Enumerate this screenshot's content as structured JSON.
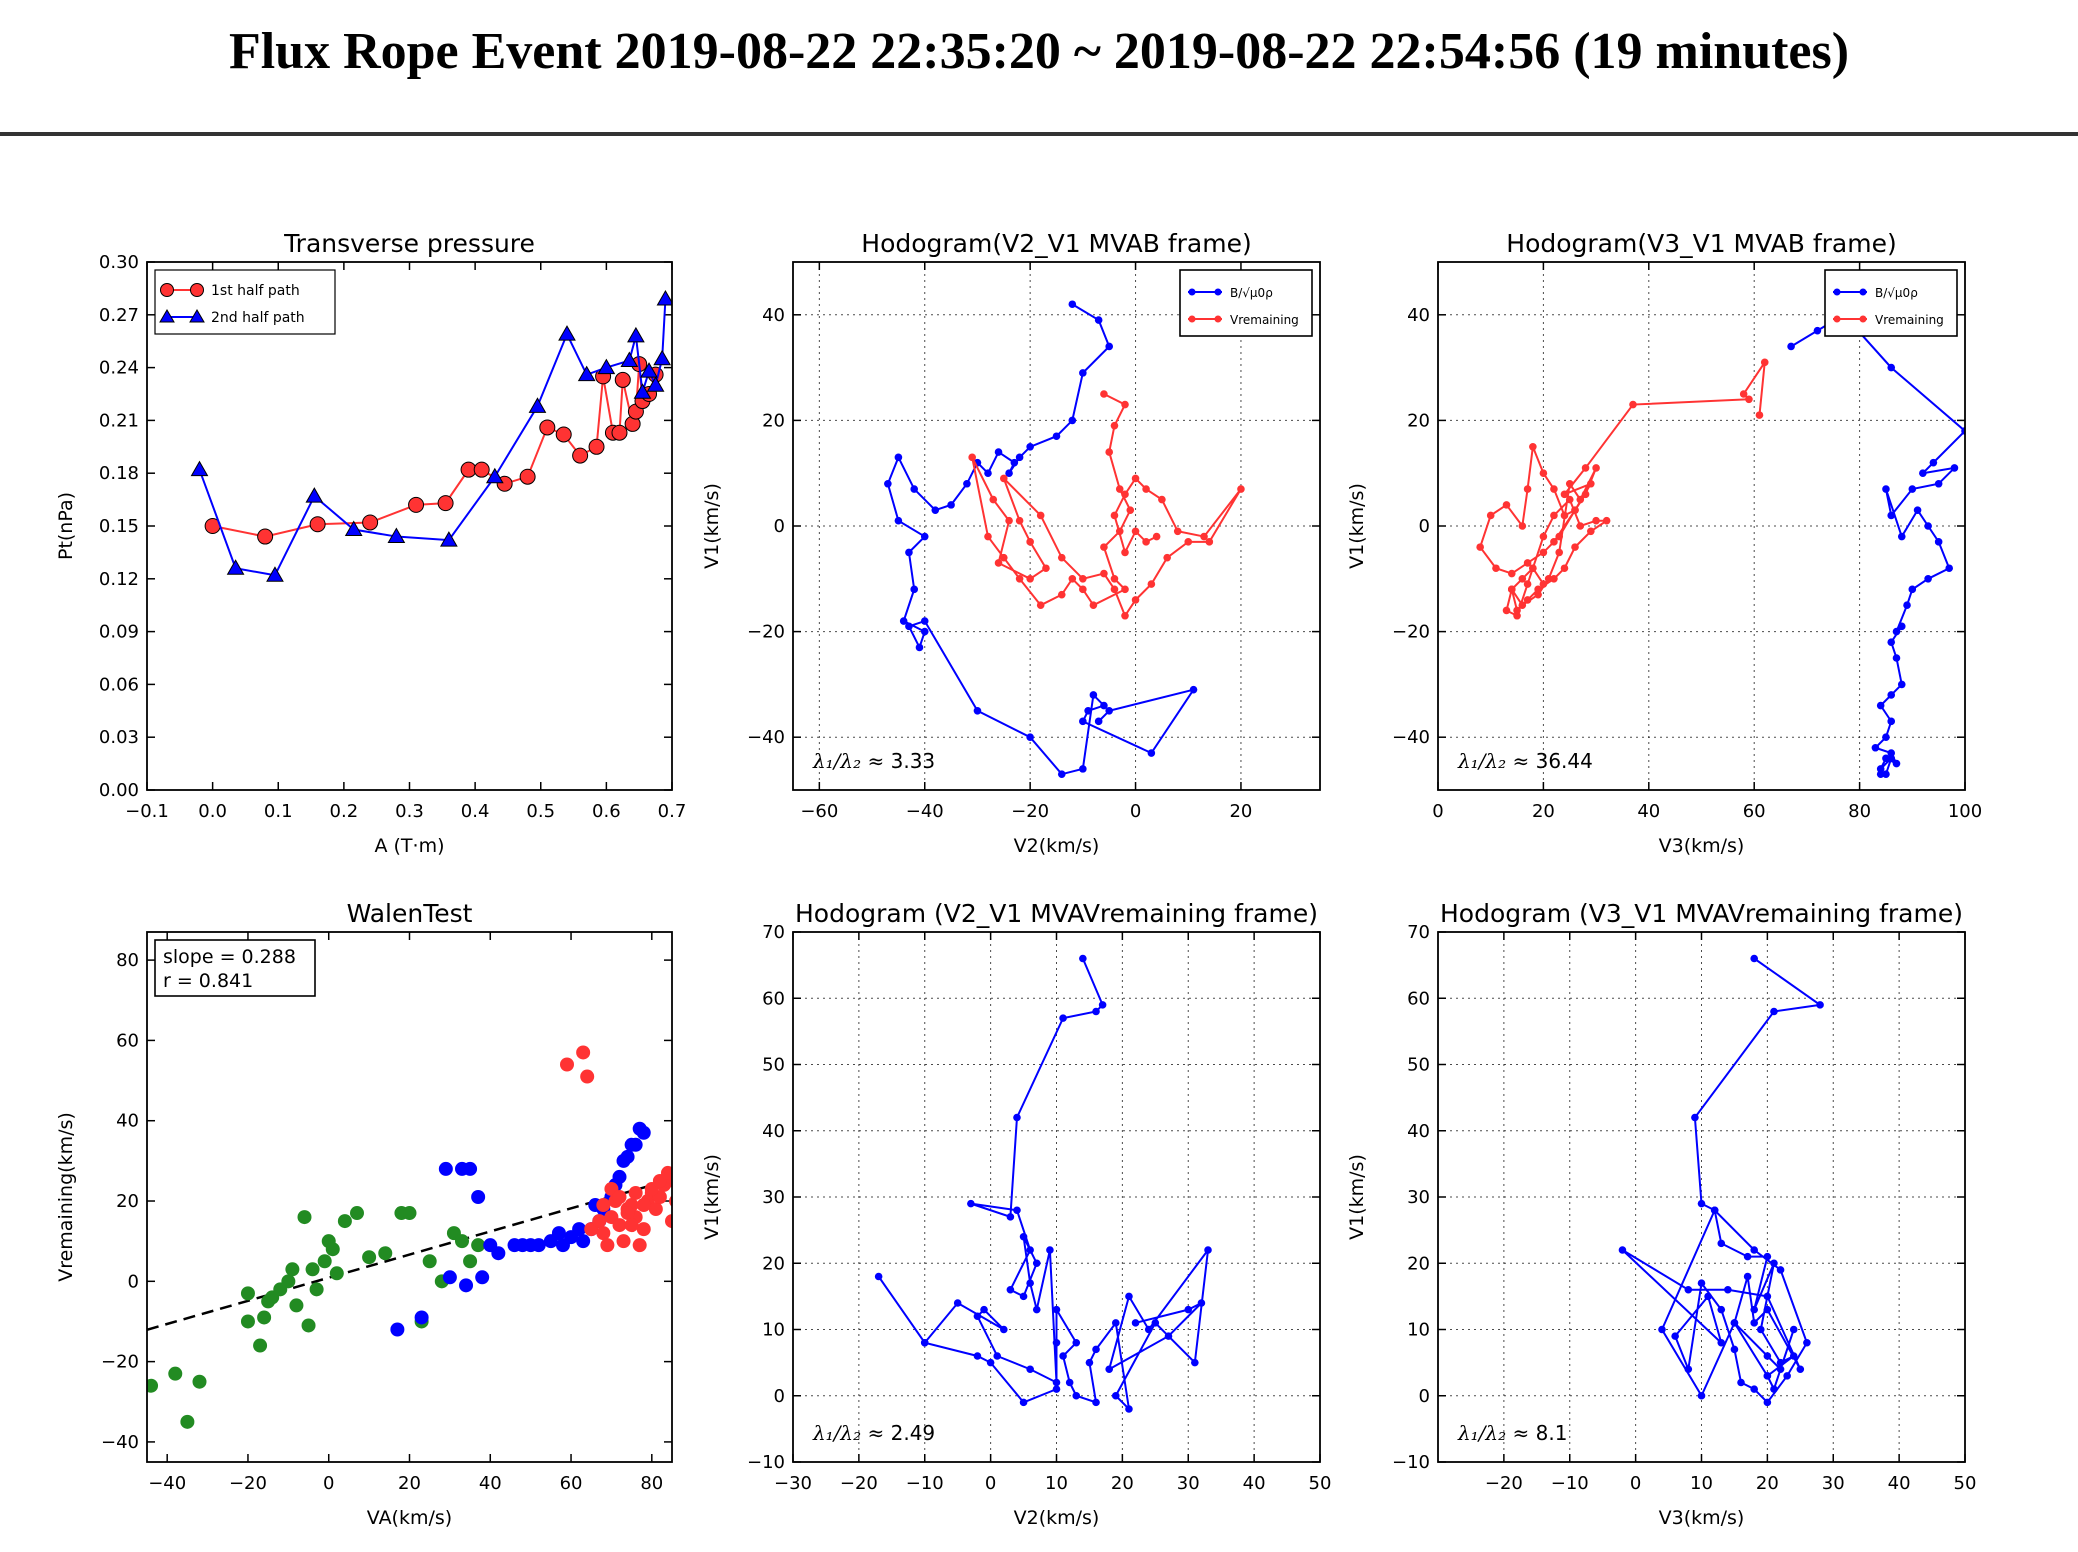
{
  "page": {
    "title": "Flux Rope Event 2019-08-22 22:35:20 ~ 2019-08-22 22:54:56 (19 minutes)"
  },
  "chart_data": [
    {
      "id": "p1",
      "type": "line",
      "title": "Transverse pressure",
      "xlabel": "A (T·m)",
      "ylabel": "Pt(nPa)",
      "xlim": [
        -0.1,
        0.7
      ],
      "ylim": [
        0,
        0.3
      ],
      "xticks": [
        "−0.1",
        "0.0",
        "0.1",
        "0.2",
        "0.3",
        "0.4",
        "0.5",
        "0.6",
        "0.7"
      ],
      "yticks": [
        "0.00",
        "0.03",
        "0.06",
        "0.09",
        "0.12",
        "0.15",
        "0.18",
        "0.21",
        "0.24",
        "0.27",
        "0.30"
      ],
      "grid": false,
      "legend": "top-left",
      "series": [
        {
          "name": "1st half path",
          "color": "#ff3333",
          "marker": "circle",
          "x": [
            0.0,
            0.08,
            0.16,
            0.24,
            0.31,
            0.355,
            0.39,
            0.41,
            0.445,
            0.48,
            0.51,
            0.535,
            0.56,
            0.585,
            0.595,
            0.61,
            0.62,
            0.625,
            0.64,
            0.645,
            0.65,
            0.655,
            0.665,
            0.675
          ],
          "y": [
            0.15,
            0.144,
            0.151,
            0.152,
            0.162,
            0.163,
            0.182,
            0.182,
            0.174,
            0.178,
            0.206,
            0.202,
            0.19,
            0.195,
            0.235,
            0.203,
            0.203,
            0.233,
            0.208,
            0.215,
            0.242,
            0.221,
            0.225,
            0.236
          ]
        },
        {
          "name": "2nd half path",
          "color": "#0000ff",
          "marker": "triangle",
          "x": [
            -0.02,
            0.035,
            0.095,
            0.155,
            0.215,
            0.28,
            0.36,
            0.43,
            0.495,
            0.54,
            0.57,
            0.6,
            0.635,
            0.645,
            0.655,
            0.665,
            0.675,
            0.685,
            0.69
          ],
          "y": [
            0.182,
            0.126,
            0.122,
            0.167,
            0.148,
            0.144,
            0.142,
            0.178,
            0.218,
            0.259,
            0.236,
            0.24,
            0.244,
            0.258,
            0.226,
            0.238,
            0.23,
            0.245,
            0.279
          ]
        }
      ]
    },
    {
      "id": "p2",
      "type": "line",
      "title": "Hodogram(V2_V1 MVAB frame)",
      "xlabel": "V2(km/s)",
      "ylabel": "V1(km/s)",
      "xlim": [
        -65,
        35
      ],
      "ylim": [
        -50,
        50
      ],
      "xticks": [
        "−60",
        "−40",
        "−20",
        "0",
        "20"
      ],
      "yticks": [
        "−40",
        "−20",
        "0",
        "20",
        "40"
      ],
      "grid": true,
      "legend": "top-right",
      "annotation": "3.33",
      "series": [
        {
          "name": "B/√μ0ρ",
          "color": "#0000ff",
          "x": [
            -12,
            -7,
            -5,
            -10,
            -12,
            -15,
            -20,
            -22,
            -24,
            -23,
            -26,
            -28,
            -30,
            -32,
            -35,
            -38,
            -42,
            -45,
            -47,
            -45,
            -40,
            -43,
            -42,
            -44,
            -40,
            -41,
            -43,
            -40,
            -30,
            -20,
            -14,
            -10,
            -8,
            -6,
            -9,
            -10,
            3,
            11,
            -5,
            -7
          ],
          "x_": null,
          "y": [
            42,
            39,
            34,
            29,
            20,
            17,
            15,
            13,
            10,
            12,
            14,
            10,
            12,
            8,
            4,
            3,
            7,
            13,
            8,
            1,
            -2,
            -5,
            -12,
            -18,
            -20,
            -23,
            -19,
            -18,
            -35,
            -40,
            -47,
            -46,
            -32,
            -34,
            -35,
            -37,
            -43,
            -31,
            -35,
            -37
          ]
        },
        {
          "name": "Vremaining",
          "color": "#ff3333",
          "x": [
            -6,
            -2,
            -4,
            -5,
            -3,
            -1,
            -3,
            -6,
            -4,
            -2,
            -8,
            -10,
            -12,
            -14,
            -18,
            -22,
            -25,
            -28,
            -31,
            -27,
            -24,
            -26,
            -20,
            -17,
            -20,
            -22,
            -25,
            -18,
            -14,
            -10,
            -6,
            -4,
            -2,
            0,
            3,
            6,
            10,
            14,
            20,
            13,
            8,
            5,
            2,
            0,
            -2,
            -4,
            -2,
            0,
            2,
            4
          ],
          "y": [
            25,
            23,
            19,
            14,
            7,
            3,
            -1,
            -4,
            -10,
            -12,
            -15,
            -12,
            -10,
            -13,
            -15,
            -10,
            -6,
            -2,
            13,
            5,
            1,
            -7,
            -10,
            -8,
            -3,
            1,
            9,
            2,
            -6,
            -10,
            -9,
            -12,
            -17,
            -14,
            -11,
            -6,
            -3,
            -3,
            7,
            -2,
            -1,
            5,
            7,
            9,
            6,
            2,
            -5,
            -1,
            -3,
            -2
          ]
        }
      ]
    },
    {
      "id": "p3",
      "type": "line",
      "title": "Hodogram(V3_V1 MVAB frame)",
      "xlabel": "V3(km/s)",
      "ylabel": "V1(km/s)",
      "xlim": [
        0,
        100
      ],
      "ylim": [
        -50,
        50
      ],
      "xticks": [
        "0",
        "20",
        "40",
        "60",
        "80",
        "100"
      ],
      "yticks": [
        "−40",
        "−20",
        "0",
        "20",
        "40"
      ],
      "grid": true,
      "legend": "top-right",
      "annotation": "36.44",
      "series": [
        {
          "name": "B/√μ0ρ",
          "color": "#0000ff",
          "x": [
            67,
            72,
            77,
            86,
            100,
            94,
            92,
            98,
            95,
            90,
            86,
            85,
            88,
            91,
            93,
            95,
            97,
            93,
            90,
            89,
            87,
            88,
            86,
            87,
            88,
            86,
            84,
            86,
            85,
            83,
            86,
            87,
            85,
            84,
            86,
            85,
            84
          ],
          "y": [
            34,
            37,
            40,
            30,
            18,
            12,
            10,
            11,
            8,
            7,
            2,
            7,
            -2,
            3,
            0,
            -3,
            -8,
            -10,
            -12,
            -15,
            -20,
            -19,
            -22,
            -25,
            -30,
            -32,
            -34,
            -37,
            -40,
            -42,
            -43,
            -45,
            -44,
            -46,
            -44,
            -47,
            -47
          ]
        },
        {
          "name": "Vremaining",
          "color": "#ff3333",
          "x": [
            61,
            62,
            58,
            59,
            37,
            28,
            24,
            29,
            23,
            26,
            22,
            20,
            17,
            14,
            11,
            8,
            10,
            13,
            16,
            17,
            18,
            20,
            22,
            24,
            26,
            28,
            30,
            27,
            25,
            23,
            21,
            19,
            16,
            14,
            13,
            15,
            17,
            18,
            20,
            22,
            25,
            27,
            30,
            32,
            29,
            26,
            24,
            22,
            19,
            17,
            15,
            14,
            16,
            18,
            20
          ],
          "y": [
            21,
            31,
            25,
            24,
            23,
            11,
            6,
            8,
            -2,
            3,
            -3,
            -5,
            -7,
            -9,
            -8,
            -4,
            2,
            4,
            0,
            7,
            15,
            10,
            7,
            2,
            3,
            6,
            11,
            5,
            8,
            -5,
            -10,
            -13,
            -15,
            -12,
            -16,
            -17,
            -11,
            -8,
            -2,
            2,
            5,
            0,
            1,
            1,
            -1,
            -4,
            -8,
            -10,
            -12,
            -14,
            -16,
            -12,
            -10,
            -8,
            -11
          ]
        }
      ]
    },
    {
      "id": "p4",
      "type": "scatter",
      "title": "WalenTest",
      "xlabel": "VA(km/s)",
      "ylabel": "Vremaining(km/s)",
      "xlim": [
        -45,
        85
      ],
      "ylim": [
        -45,
        87
      ],
      "xticks": [
        "−40",
        "−20",
        "0",
        "20",
        "40",
        "60",
        "80"
      ],
      "yticks": [
        "−40",
        "−20",
        "0",
        "20",
        "40",
        "60",
        "80"
      ],
      "grid": false,
      "stats": {
        "slope": "slope = 0.288",
        "r": "r = 0.841"
      },
      "fit": {
        "slope": 0.288,
        "intercept": 0.9,
        "style": "dashed"
      },
      "series": [
        {
          "color": "#228b22",
          "x": [
            -44,
            -38,
            -35,
            -32,
            -20,
            -20,
            -17,
            -16,
            -15,
            -14,
            -12,
            -10,
            -9,
            -8,
            -6,
            -5,
            -4,
            -3,
            -1,
            0,
            1,
            2,
            4,
            7,
            10,
            14,
            18,
            20,
            23,
            25,
            28,
            31,
            33,
            35,
            37
          ],
          "y": [
            -26,
            -23,
            -35,
            -25,
            -3,
            -10,
            -16,
            -9,
            -5,
            -4,
            -2,
            0,
            3,
            -6,
            16,
            -11,
            3,
            -2,
            5,
            10,
            8,
            2,
            15,
            17,
            6,
            7,
            17,
            17,
            -10,
            5,
            0,
            12,
            10,
            5,
            9
          ]
        },
        {
          "color": "#0000ff",
          "x": [
            17,
            23,
            29,
            30,
            33,
            34,
            35,
            37,
            38,
            40,
            42,
            46,
            48,
            50,
            52,
            55,
            57,
            58,
            60,
            62,
            63,
            65,
            66,
            67,
            68,
            70,
            71,
            72,
            73,
            74,
            75,
            76,
            77,
            78
          ],
          "y": [
            -12,
            -9,
            28,
            1,
            28,
            -1,
            28,
            21,
            1,
            9,
            7,
            9,
            9,
            9,
            9,
            10,
            12,
            9,
            11,
            13,
            10,
            13,
            19,
            15,
            18,
            21,
            24,
            26,
            30,
            31,
            34,
            34,
            38,
            37
          ]
        },
        {
          "color": "#ff3333",
          "x": [
            59,
            63,
            64,
            65,
            67,
            68,
            69,
            70,
            71,
            72,
            73,
            74,
            75,
            76,
            77,
            78,
            79,
            80,
            81,
            82,
            83,
            84,
            85,
            86,
            70,
            72,
            74,
            76,
            78,
            80,
            82,
            84,
            86,
            68,
            75,
            85
          ],
          "y": [
            54,
            57,
            51,
            13,
            15,
            12,
            9,
            16,
            20,
            14,
            10,
            18,
            19,
            16,
            9,
            13,
            20,
            22,
            18,
            21,
            24,
            25,
            26,
            26,
            23,
            21,
            17,
            22,
            19,
            23,
            25,
            27,
            20,
            19,
            14,
            15
          ]
        }
      ]
    },
    {
      "id": "p5",
      "type": "line",
      "title": "Hodogram (V2_V1 MVAVremaining frame)",
      "xlabel": "V2(km/s)",
      "ylabel": "V1(km/s)",
      "xlim": [
        -30,
        50
      ],
      "ylim": [
        -10,
        70
      ],
      "xticks": [
        "−30",
        "−20",
        "−10",
        "0",
        "10",
        "20",
        "30",
        "40",
        "50"
      ],
      "yticks": [
        "−10",
        "0",
        "10",
        "20",
        "30",
        "40",
        "50",
        "60",
        "70"
      ],
      "grid": true,
      "annotation": "2.49",
      "series": [
        {
          "color": "#0000ff",
          "x": [
            14,
            17,
            16,
            11,
            4,
            3,
            -3,
            4,
            6,
            3,
            5,
            7,
            5,
            6,
            7,
            9,
            10,
            6,
            1,
            -2,
            -1,
            2,
            -5,
            -10,
            -17,
            -10,
            -2,
            0,
            5,
            10,
            10,
            10,
            13,
            11,
            12,
            13,
            16,
            15,
            16,
            19,
            21,
            19,
            25,
            31,
            33,
            24,
            21,
            18,
            27,
            32,
            30,
            22
          ],
          "y": [
            66,
            59,
            58,
            57,
            42,
            27,
            29,
            28,
            22,
            16,
            15,
            20,
            24,
            17,
            13,
            22,
            2,
            4,
            6,
            12,
            13,
            10,
            14,
            8,
            18,
            8,
            6,
            5,
            -1,
            1,
            8,
            13,
            8,
            6,
            2,
            0,
            -1,
            5,
            7,
            11,
            -2,
            0,
            11,
            5,
            22,
            10,
            15,
            4,
            9,
            14,
            13,
            11
          ]
        }
      ]
    },
    {
      "id": "p6",
      "type": "line",
      "title": "Hodogram (V3_V1 MVAVremaining frame)",
      "xlabel": "V3(km/s)",
      "ylabel": "V1(km/s)",
      "xlim": [
        -30,
        50
      ],
      "ylim": [
        -10,
        70
      ],
      "xticks": [
        "−20",
        "−10",
        "0",
        "10",
        "20",
        "30",
        "40",
        "50"
      ],
      "yticks": [
        "−10",
        "0",
        "10",
        "20",
        "30",
        "40",
        "50",
        "60",
        "70"
      ],
      "grid": true,
      "annotation": "8.1",
      "series": [
        {
          "color": "#0000ff",
          "x": [
            18,
            28,
            21,
            9,
            10,
            12,
            13,
            17,
            20,
            18,
            21,
            19,
            22,
            24,
            20,
            15,
            10,
            4,
            12,
            18,
            22,
            26,
            23,
            20,
            18,
            16,
            15,
            13,
            10,
            8,
            6,
            11,
            13,
            -2,
            8,
            14,
            20,
            25,
            20,
            18,
            17,
            15,
            20,
            22,
            24,
            21,
            20
          ],
          "y": [
            66,
            59,
            58,
            42,
            29,
            28,
            23,
            21,
            21,
            13,
            20,
            10,
            5,
            6,
            3,
            11,
            0,
            10,
            28,
            22,
            19,
            8,
            3,
            -1,
            1,
            2,
            7,
            13,
            17,
            4,
            9,
            15,
            8,
            22,
            16,
            16,
            15,
            4,
            13,
            11,
            18,
            11,
            6,
            4,
            10,
            1,
            3
          ]
        }
      ]
    }
  ]
}
